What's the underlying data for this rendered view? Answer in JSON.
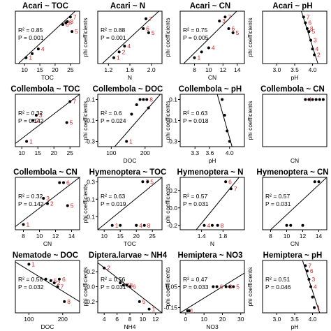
{
  "chart_data": [
    {
      "type": "scatter",
      "title": "Acari ~ TOC",
      "xlabel": "TOC",
      "ylabel": "",
      "xlim": [
        7,
        28
      ],
      "ylim": [
        -0.25,
        0.65
      ],
      "xticks": [
        "10",
        "15",
        "20",
        "25"
      ],
      "xtick_values": [
        10,
        15,
        20,
        25
      ],
      "yticks": [],
      "ytick_values": [],
      "r2": "R² = 0.85",
      "p": "P = 0.001",
      "points": [
        {
          "x": 10.5,
          "y": -0.15,
          "label": "1"
        },
        {
          "x": 12.5,
          "y": -0.08,
          "label": ""
        },
        {
          "x": 14.5,
          "y": 0.0,
          "label": "4"
        },
        {
          "x": 22.5,
          "y": 0.42,
          "label": "6"
        },
        {
          "x": 23.5,
          "y": 0.45,
          "label": "8"
        },
        {
          "x": 24.0,
          "y": 0.47,
          "label": "3"
        },
        {
          "x": 25.0,
          "y": 0.55,
          "label": "7"
        },
        {
          "x": 25.5,
          "y": 0.3,
          "label": "5"
        }
      ],
      "fit": [
        [
          8,
          -0.25
        ],
        [
          28,
          0.72
        ]
      ]
    },
    {
      "type": "scatter",
      "title": "Acari ~ N",
      "xlabel": "N",
      "ylabel": "phi coefficients",
      "xlim": [
        1.0,
        2.2
      ],
      "ylim": [
        -0.25,
        0.65
      ],
      "xticks": [
        "1.2",
        "1.6",
        "2.0"
      ],
      "xtick_values": [
        1.2,
        1.6,
        2.0
      ],
      "yticks": [],
      "ytick_values": [],
      "r2": "R² = 0.88",
      "p": "P = 0.001",
      "points": [
        {
          "x": 1.3,
          "y": -0.15,
          "label": "1"
        },
        {
          "x": 1.4,
          "y": -0.05,
          "label": "2"
        },
        {
          "x": 1.5,
          "y": 0.05,
          "label": "4"
        },
        {
          "x": 1.85,
          "y": 0.35,
          "label": "6"
        },
        {
          "x": 1.9,
          "y": 0.52,
          "label": "7"
        },
        {
          "x": 1.95,
          "y": 0.28,
          "label": "5"
        }
      ],
      "fit": [
        [
          1.05,
          -0.28
        ],
        [
          2.2,
          0.7
        ]
      ]
    },
    {
      "type": "scatter",
      "title": "Acari ~ CN",
      "xlabel": "CN",
      "ylabel": "phi coefficients",
      "xlim": [
        6,
        15
      ],
      "ylim": [
        -0.25,
        0.65
      ],
      "xticks": [
        "8",
        "10",
        "12",
        "14"
      ],
      "xtick_values": [
        8,
        10,
        12,
        14
      ],
      "yticks": [],
      "ytick_values": [],
      "r2": "R² = 0.75",
      "p": "P = 0.005",
      "points": [
        {
          "x": 8.0,
          "y": -0.15,
          "label": "1"
        },
        {
          "x": 9.0,
          "y": -0.05,
          "label": ""
        },
        {
          "x": 10.0,
          "y": 0.02,
          "label": "4"
        },
        {
          "x": 11.5,
          "y": 0.48,
          "label": "3"
        },
        {
          "x": 12.3,
          "y": 0.55,
          "label": "7"
        },
        {
          "x": 12.8,
          "y": 0.35,
          "label": "6"
        },
        {
          "x": 13.4,
          "y": 0.28,
          "label": "5"
        }
      ],
      "fit": [
        [
          6.5,
          -0.25
        ],
        [
          14.5,
          0.72
        ]
      ]
    },
    {
      "type": "scatter",
      "title": "Acari ~ pH",
      "xlabel": "pH",
      "ylabel": "phi coefficients",
      "xlim": [
        2.6,
        4.4
      ],
      "ylim": [
        -0.25,
        0.65
      ],
      "xticks": [
        "3.0",
        "3.5",
        "4.0"
      ],
      "xtick_values": [
        3.0,
        3.5,
        4.0
      ],
      "yticks": [],
      "ytick_values": [],
      "r2": "",
      "p": "",
      "points": [
        {
          "x": 3.75,
          "y": 0.55,
          "label": "7"
        },
        {
          "x": 3.8,
          "y": 0.45,
          "label": "6"
        },
        {
          "x": 3.85,
          "y": 0.35,
          "label": "8"
        },
        {
          "x": 3.9,
          "y": 0.3,
          "label": "5"
        },
        {
          "x": 3.95,
          "y": 0.15,
          "label": "3"
        },
        {
          "x": 4.0,
          "y": 0.0,
          "label": "4"
        },
        {
          "x": 4.05,
          "y": -0.1,
          "label": "2"
        }
      ],
      "fit": [
        [
          3.65,
          0.72
        ],
        [
          4.15,
          -0.25
        ]
      ]
    },
    {
      "type": "scatter",
      "title": "Collembola ~ TOC",
      "xlabel": "",
      "ylabel": "",
      "xlim": [
        8,
        28
      ],
      "ylim": [
        -0.35,
        0.15
      ],
      "xticks": [
        "10",
        "15",
        "20",
        "25"
      ],
      "xtick_values": [
        10,
        15,
        20,
        25
      ],
      "yticks": [],
      "ytick_values": [],
      "r2": "R² = 0.32",
      "p": "P = 0.142",
      "points": [
        {
          "x": 11.5,
          "y": -0.3,
          "label": "1"
        },
        {
          "x": 14.5,
          "y": -0.05,
          "label": "3"
        },
        {
          "x": 13.5,
          "y": -0.1,
          "label": "2"
        },
        {
          "x": 25.0,
          "y": 0.08,
          "label": "7"
        },
        {
          "x": 24.0,
          "y": -0.12,
          "label": "5"
        }
      ],
      "fit": [
        [
          8,
          -0.32
        ],
        [
          28,
          0.15
        ]
      ]
    },
    {
      "type": "scatter",
      "title": "Collembola ~ DOC",
      "xlabel": "DOC",
      "ylabel": "phi coefficients",
      "xlim": [
        60,
        250
      ],
      "ylim": [
        -0.35,
        0.15
      ],
      "xticks": [
        "100",
        "200"
      ],
      "xtick_values": [
        100,
        200
      ],
      "yticks": [
        "0.1",
        "-0.1",
        "-0.3"
      ],
      "ytick_values": [
        0.1,
        -0.1,
        -0.3
      ],
      "r2": "R² = 0.6",
      "p": "P = 0.024",
      "points": [
        {
          "x": 145,
          "y": -0.3,
          "label": "1"
        },
        {
          "x": 160,
          "y": -0.04,
          "label": ""
        },
        {
          "x": 185,
          "y": 0.1,
          "label": ""
        },
        {
          "x": 195,
          "y": 0.1,
          "label": ""
        },
        {
          "x": 205,
          "y": 0.1,
          "label": "8"
        },
        {
          "x": 175,
          "y": 0.05,
          "label": ""
        },
        {
          "x": 210,
          "y": 0.02,
          "label": ""
        }
      ],
      "fit": [
        [
          110,
          -0.35
        ],
        [
          245,
          0.15
        ]
      ]
    },
    {
      "type": "scatter",
      "title": "Collembola ~ pH",
      "xlabel": "pH",
      "ylabel": "phi coefficients",
      "xlim": [
        3.0,
        4.3
      ],
      "ylim": [
        -0.35,
        0.15
      ],
      "xticks": [
        "3.3",
        "3.6",
        "4.0"
      ],
      "xtick_values": [
        3.3,
        3.6,
        4.0
      ],
      "yticks": [
        "0.1",
        "-0.1",
        "-0.3"
      ],
      "ytick_values": [
        0.1,
        -0.1,
        -0.3
      ],
      "r2": "R² = 0.63",
      "p": "P = 0.018",
      "points": [
        {
          "x": 3.85,
          "y": 0.1,
          "label": ""
        },
        {
          "x": 3.9,
          "y": -0.05,
          "label": ""
        },
        {
          "x": 3.95,
          "y": -0.2,
          "label": ""
        },
        {
          "x": 4.0,
          "y": -0.3,
          "label": ""
        }
      ],
      "fit": [
        [
          3.75,
          0.15
        ],
        [
          4.05,
          -0.35
        ]
      ]
    },
    {
      "type": "scatter",
      "title": "Collembola ~ CN",
      "xlabel": "CN",
      "ylabel": "phi coefficients",
      "xlim": [
        6,
        15
      ],
      "ylim": [
        -0.35,
        0.15
      ],
      "xticks": [],
      "xtick_values": [],
      "yticks": [],
      "ytick_values": [],
      "r2": "",
      "p": "",
      "points": [
        {
          "x": 12.0,
          "y": 0.1,
          "label": "4"
        },
        {
          "x": 12.5,
          "y": 0.1,
          "label": ""
        },
        {
          "x": 13.0,
          "y": 0.1,
          "label": ""
        },
        {
          "x": 13.5,
          "y": 0.1,
          "label": ""
        },
        {
          "x": 14.0,
          "y": 0.1,
          "label": ""
        },
        {
          "x": 14.5,
          "y": 0.1,
          "label": ""
        }
      ],
      "fit": []
    },
    {
      "type": "scatter",
      "title": "Collembola ~ CN",
      "xlabel": "CN",
      "ylabel": "",
      "xlim": [
        7,
        15
      ],
      "ylim": [
        -0.35,
        0.15
      ],
      "xticks": [
        "8",
        "10",
        "12",
        "14"
      ],
      "xtick_values": [
        8,
        10,
        12,
        14
      ],
      "yticks": [],
      "ytick_values": [],
      "r2": "R² = 0.32",
      "p": "P = 0.142",
      "points": [
        {
          "x": 8.0,
          "y": -0.3,
          "label": "1"
        },
        {
          "x": 10.5,
          "y": -0.05,
          "label": "3"
        },
        {
          "x": 11.0,
          "y": -0.1,
          "label": "2"
        },
        {
          "x": 12.5,
          "y": 0.1,
          "label": ""
        },
        {
          "x": 13.0,
          "y": 0.1,
          "label": "6"
        },
        {
          "x": 13.5,
          "y": -0.12,
          "label": "5"
        }
      ],
      "fit": [
        [
          7,
          -0.32
        ],
        [
          15,
          0.15
        ]
      ]
    },
    {
      "type": "scatter",
      "title": "Hymenoptera ~ TOC",
      "xlabel": "TOC",
      "ylabel": "phi coefficients",
      "xlim": [
        8,
        28
      ],
      "ylim": [
        -0.25,
        0.35
      ],
      "xticks": [
        "10",
        "15",
        "20",
        "25"
      ],
      "xtick_values": [
        10,
        15,
        20,
        25
      ],
      "yticks": [
        "0.3",
        "0.1",
        "-0.1"
      ],
      "ytick_values": [
        0.3,
        0.1,
        -0.1
      ],
      "r2": "R² = 0.63",
      "p": "P = 0.019",
      "points": [
        {
          "x": 12.5,
          "y": -0.2,
          "label": "1"
        },
        {
          "x": 15.0,
          "y": -0.2,
          "label": ""
        },
        {
          "x": 20.0,
          "y": -0.2,
          "label": "4"
        },
        {
          "x": 22.5,
          "y": -0.2,
          "label": "8"
        },
        {
          "x": 22.0,
          "y": 0.3,
          "label": "7"
        },
        {
          "x": 23.5,
          "y": 0.3,
          "label": "5"
        }
      ],
      "fit": [
        [
          8,
          -0.25
        ],
        [
          28,
          0.35
        ]
      ]
    },
    {
      "type": "scatter",
      "title": "Hymenoptera ~ N",
      "xlabel": "N",
      "ylabel": "phi coefficients",
      "xlim": [
        1.0,
        2.2
      ],
      "ylim": [
        -0.25,
        0.35
      ],
      "xticks": [
        "1.4",
        "1.8"
      ],
      "xtick_values": [
        1.4,
        1.8
      ],
      "yticks": [
        "0.2",
        "0.0",
        "-0.2"
      ],
      "ytick_values": [
        0.2,
        0.0,
        -0.2
      ],
      "r2": "R² = 0.57",
      "p": "P = 0.031",
      "points": [
        {
          "x": 1.45,
          "y": -0.2,
          "label": "4"
        },
        {
          "x": 1.6,
          "y": -0.2,
          "label": ""
        },
        {
          "x": 1.7,
          "y": -0.2,
          "label": "8"
        },
        {
          "x": 1.85,
          "y": 0.3,
          "label": "6"
        },
        {
          "x": 1.95,
          "y": 0.22,
          "label": "7"
        }
      ],
      "fit": [
        [
          1.3,
          -0.25
        ],
        [
          2.1,
          0.35
        ]
      ]
    },
    {
      "type": "scatter",
      "title": "Hymenoptera ~ CN",
      "xlabel": "CN",
      "ylabel": "",
      "xlim": [
        7,
        15
      ],
      "ylim": [
        -0.25,
        0.35
      ],
      "xticks": [
        "8",
        "10",
        "12",
        "14"
      ],
      "xtick_values": [
        8,
        10,
        12,
        14
      ],
      "yticks": [],
      "ytick_values": [],
      "r2": "R² = 0.57",
      "p": "P = 0.031",
      "points": [
        {
          "x": 10.0,
          "y": -0.2,
          "label": ""
        },
        {
          "x": 10.5,
          "y": -0.2,
          "label": ""
        },
        {
          "x": 12.0,
          "y": -0.2,
          "label": ""
        },
        {
          "x": 13.5,
          "y": 0.3,
          "label": ""
        },
        {
          "x": 14.0,
          "y": 0.3,
          "label": ""
        }
      ],
      "fit": [
        [
          8,
          -0.25
        ],
        [
          15,
          0.35
        ]
      ]
    },
    {
      "type": "scatter",
      "title": "Nematode ~ DOC",
      "xlabel": "DOC",
      "ylabel": "",
      "xlim": [
        60,
        250
      ],
      "ylim": [
        -0.35,
        0.35
      ],
      "xticks": [
        "100",
        "200"
      ],
      "xtick_values": [
        100,
        200
      ],
      "yticks": [],
      "ytick_values": [],
      "r2": "R² = 0.56",
      "p": "P = 0.032",
      "points": [
        {
          "x": 100,
          "y": 0.3,
          "label": "1"
        },
        {
          "x": 150,
          "y": 0.1,
          "label": ""
        },
        {
          "x": 165,
          "y": 0.08,
          "label": "5"
        },
        {
          "x": 175,
          "y": 0.05,
          "label": "2"
        },
        {
          "x": 185,
          "y": 0.0,
          "label": "7"
        },
        {
          "x": 190,
          "y": 0.1,
          "label": "6"
        },
        {
          "x": 205,
          "y": -0.2,
          "label": "8"
        }
      ],
      "fit": [
        [
          60,
          0.33
        ],
        [
          250,
          -0.2
        ]
      ]
    },
    {
      "type": "scatter",
      "title": "Diptera.larvae ~ NH4",
      "xlabel": "NH4",
      "ylabel": "phi coefficients",
      "xlim": [
        3,
        13
      ],
      "ylim": [
        -0.35,
        0.35
      ],
      "xticks": [
        "4",
        "6",
        "8",
        "10",
        "12"
      ],
      "xtick_values": [
        4,
        6,
        8,
        10,
        12
      ],
      "yticks": [
        "0.2",
        "0.0",
        "-0.2"
      ],
      "ytick_values": [
        0.2,
        0.0,
        -0.2
      ],
      "r2": "R² = 0.56",
      "p": "P = 0.031",
      "points": [
        {
          "x": 4.0,
          "y": 0.25,
          "label": "2"
        },
        {
          "x": 6.5,
          "y": 0.05,
          "label": ""
        },
        {
          "x": 7.0,
          "y": 0.02,
          "label": "7"
        },
        {
          "x": 7.5,
          "y": 0.02,
          "label": "8"
        },
        {
          "x": 8.0,
          "y": 0.0,
          "label": "6"
        },
        {
          "x": 9.5,
          "y": -0.2,
          "label": "5"
        },
        {
          "x": 11.0,
          "y": -0.3,
          "label": "1"
        }
      ],
      "fit": [
        [
          3,
          0.32
        ],
        [
          13,
          -0.35
        ]
      ]
    },
    {
      "type": "scatter",
      "title": "Hemiptera ~ NO3",
      "xlabel": "NO3",
      "ylabel": "phi coefficients",
      "xlim": [
        -3,
        32
      ],
      "ylim": [
        -0.2,
        0.3
      ],
      "xticks": [
        "0",
        "10",
        "20",
        "30"
      ],
      "xtick_values": [
        0,
        10,
        20,
        30
      ],
      "yticks": [
        "0.05",
        "-0.15"
      ],
      "ytick_values": [
        0.05,
        -0.15
      ],
      "r2": "R² = 0.47",
      "p": "P = 0.033",
      "points": [
        {
          "x": 1.0,
          "y": -0.18,
          "label": "1"
        },
        {
          "x": 2.0,
          "y": -0.18,
          "label": ""
        },
        {
          "x": 15.0,
          "y": 0.05,
          "label": ""
        },
        {
          "x": 17.0,
          "y": 0.05,
          "label": "6"
        },
        {
          "x": 22.0,
          "y": 0.05,
          "label": "3"
        },
        {
          "x": 24.0,
          "y": 0.05,
          "label": ""
        },
        {
          "x": 26.0,
          "y": 0.05,
          "label": "5"
        }
      ],
      "fit": [
        [
          -3,
          -0.2
        ],
        [
          32,
          0.18
        ]
      ]
    },
    {
      "type": "scatter",
      "title": "Hemiptera ~ pH",
      "xlabel": "pH",
      "ylabel": "phi coefficients",
      "xlim": [
        2.6,
        4.4
      ],
      "ylim": [
        -0.2,
        0.3
      ],
      "xticks": [
        "3.0",
        "3.5",
        "4.0"
      ],
      "xtick_values": [
        3.0,
        3.5,
        4.0
      ],
      "yticks": [],
      "ytick_values": [],
      "r2": "R² = 0.51",
      "p": "P = 0.046",
      "points": [
        {
          "x": 3.8,
          "y": 0.25,
          "label": "7"
        },
        {
          "x": 3.85,
          "y": 0.2,
          "label": "6"
        },
        {
          "x": 3.9,
          "y": 0.12,
          "label": "3"
        },
        {
          "x": 3.95,
          "y": 0.05,
          "label": "4"
        },
        {
          "x": 4.0,
          "y": -0.05,
          "label": ""
        },
        {
          "x": 4.05,
          "y": -0.15,
          "label": "1"
        }
      ],
      "fit": [
        [
          3.7,
          0.32
        ],
        [
          4.2,
          -0.2
        ]
      ]
    }
  ]
}
